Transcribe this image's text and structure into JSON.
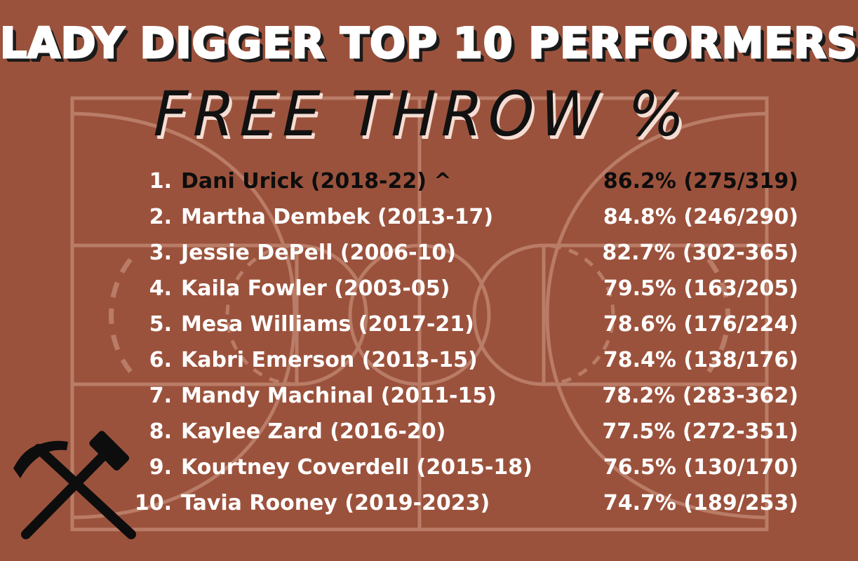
{
  "colors": {
    "background": "#9b523c",
    "court_lines": "#c48a75",
    "title_text": "#ffffff",
    "subtitle_text": "#111111",
    "row_text": "#ffffff",
    "first_row_text": "#0d0d0d"
  },
  "header": {
    "title": "LADY DIGGER TOP 10 PERFORMERS",
    "subtitle": "FREE THROW %"
  },
  "logo": {
    "icon": "crossed-hammers-icon"
  },
  "rows": [
    {
      "rank": "1.",
      "name": "Dani Urick (2018-22)  ^",
      "stat": "86.2% (275/319)"
    },
    {
      "rank": "2.",
      "name": "Martha Dembek (2013-17)",
      "stat": "84.8% (246/290)"
    },
    {
      "rank": "3.",
      "name": "Jessie DePell (2006-10)",
      "stat": "82.7% (302-365)"
    },
    {
      "rank": "4.",
      "name": "Kaila Fowler (2003-05)",
      "stat": "79.5% (163/205)"
    },
    {
      "rank": "5.",
      "name": "Mesa Williams (2017-21)",
      "stat": "78.6% (176/224)"
    },
    {
      "rank": "6.",
      "name": "Kabri Emerson (2013-15)",
      "stat": "78.4% (138/176)"
    },
    {
      "rank": "7.",
      "name": "Mandy Machinal (2011-15)",
      "stat": "78.2% (283-362)"
    },
    {
      "rank": "8.",
      "name": "Kaylee Zard (2016-20)",
      "stat": "77.5% (272-351)"
    },
    {
      "rank": "9.",
      "name": "Kourtney Coverdell (2015-18)",
      "stat": "76.5% (130/170)"
    },
    {
      "rank": "10.",
      "name": "Tavia Rooney (2019-2023)",
      "stat": "74.7% (189/253)"
    }
  ]
}
